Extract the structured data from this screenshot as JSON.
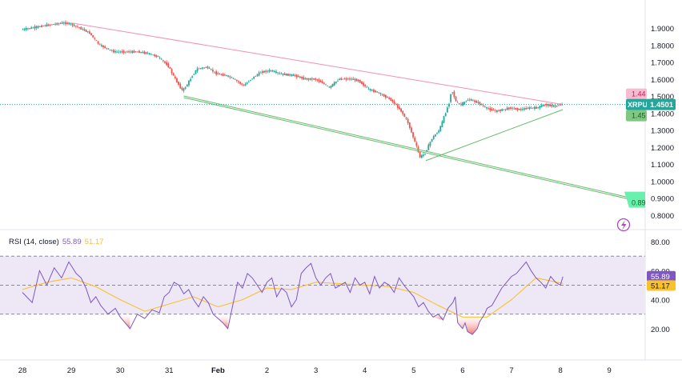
{
  "chart_data": [
    {
      "type": "candlestick",
      "symbol": "XRPUSD",
      "last_price_label": "1.4501",
      "bid_label": "1.44",
      "ask_label": "1.45",
      "target_label": "0.89",
      "x_ticks": [
        "28",
        "29",
        "30",
        "31",
        "Feb",
        "2",
        "3",
        "4",
        "5",
        "6",
        "7",
        "8",
        "9"
      ],
      "y_ticks": [
        "1.9000",
        "1.8000",
        "1.7000",
        "1.6000",
        "1.5000",
        "1.4000",
        "1.3000",
        "1.2000",
        "1.1000",
        "1.0000",
        "0.9000",
        "0.8000"
      ],
      "ylim": [
        0.78,
        1.98
      ],
      "price_path": [
        [
          0.0,
          1.89
        ],
        [
          0.5,
          1.915
        ],
        [
          0.85,
          1.93
        ],
        [
          1.0,
          1.925
        ],
        [
          1.2,
          1.9
        ],
        [
          1.4,
          1.87
        ],
        [
          1.6,
          1.8
        ],
        [
          1.75,
          1.78
        ],
        [
          1.9,
          1.76
        ],
        [
          2.1,
          1.76
        ],
        [
          2.4,
          1.76
        ],
        [
          2.6,
          1.75
        ],
        [
          2.8,
          1.73
        ],
        [
          3.0,
          1.68
        ],
        [
          3.15,
          1.6
        ],
        [
          3.3,
          1.53
        ],
        [
          3.4,
          1.57
        ],
        [
          3.5,
          1.62
        ],
        [
          3.6,
          1.66
        ],
        [
          3.8,
          1.67
        ],
        [
          4.0,
          1.63
        ],
        [
          4.2,
          1.62
        ],
        [
          4.35,
          1.6
        ],
        [
          4.55,
          1.56
        ],
        [
          4.7,
          1.6
        ],
        [
          4.9,
          1.64
        ],
        [
          5.1,
          1.65
        ],
        [
          5.3,
          1.63
        ],
        [
          5.6,
          1.62
        ],
        [
          5.8,
          1.6
        ],
        [
          6.0,
          1.6
        ],
        [
          6.15,
          1.58
        ],
        [
          6.3,
          1.55
        ],
        [
          6.5,
          1.6
        ],
        [
          6.75,
          1.6
        ],
        [
          6.9,
          1.59
        ],
        [
          7.1,
          1.54
        ],
        [
          7.3,
          1.52
        ],
        [
          7.55,
          1.48
        ],
        [
          7.75,
          1.42
        ],
        [
          7.9,
          1.35
        ],
        [
          8.0,
          1.27
        ],
        [
          8.1,
          1.19
        ],
        [
          8.15,
          1.14
        ],
        [
          8.25,
          1.16
        ],
        [
          8.4,
          1.25
        ],
        [
          8.55,
          1.3
        ],
        [
          8.65,
          1.38
        ],
        [
          8.75,
          1.46
        ],
        [
          8.8,
          1.54
        ],
        [
          8.9,
          1.46
        ],
        [
          9.0,
          1.45
        ],
        [
          9.15,
          1.48
        ],
        [
          9.35,
          1.46
        ],
        [
          9.5,
          1.43
        ],
        [
          9.7,
          1.41
        ],
        [
          9.85,
          1.42
        ],
        [
          10.0,
          1.43
        ],
        [
          10.2,
          1.42
        ],
        [
          10.4,
          1.43
        ],
        [
          10.55,
          1.43
        ],
        [
          10.7,
          1.45
        ],
        [
          10.9,
          1.44
        ],
        [
          11.05,
          1.45
        ]
      ],
      "trendlines": [
        {
          "kind": "resistance",
          "color": "#f48fb1",
          "points": [
            [
              1.0,
              1.93
            ],
            [
              11.05,
              1.45
            ]
          ]
        },
        {
          "kind": "support",
          "color": "#66bb6a",
          "points": [
            [
              3.3,
              1.5
            ],
            [
              12.6,
              0.89
            ]
          ]
        },
        {
          "kind": "rising",
          "color": "#66bb6a",
          "points": [
            [
              8.25,
              1.12
            ],
            [
              11.05,
              1.42
            ]
          ]
        }
      ],
      "horizontal_line": {
        "value": 1.4501,
        "color": "#26a69a"
      },
      "up_color": "#26a69a",
      "down_color": "#ef5350"
    },
    {
      "type": "line",
      "indicator_label": "RSI (14, close)",
      "rsi_value_label": "55.89",
      "ma_value_label": "51.17",
      "y_ticks": [
        "80.00",
        "60.00",
        "40.00",
        "20.00"
      ],
      "ylim": [
        5,
        85
      ],
      "bands": [
        70,
        50,
        30
      ],
      "rsi": [
        [
          0.0,
          45
        ],
        [
          0.2,
          38
        ],
        [
          0.35,
          60
        ],
        [
          0.5,
          50
        ],
        [
          0.65,
          62
        ],
        [
          0.8,
          55
        ],
        [
          0.95,
          66
        ],
        [
          1.1,
          58
        ],
        [
          1.2,
          55
        ],
        [
          1.3,
          48
        ],
        [
          1.4,
          38
        ],
        [
          1.5,
          42
        ],
        [
          1.6,
          36
        ],
        [
          1.75,
          30
        ],
        [
          1.9,
          34
        ],
        [
          2.0,
          28
        ],
        [
          2.1,
          24
        ],
        [
          2.2,
          20
        ],
        [
          2.35,
          30
        ],
        [
          2.5,
          27
        ],
        [
          2.65,
          33
        ],
        [
          2.8,
          31
        ],
        [
          2.9,
          42
        ],
        [
          3.0,
          45
        ],
        [
          3.1,
          52
        ],
        [
          3.2,
          50
        ],
        [
          3.3,
          44
        ],
        [
          3.4,
          47
        ],
        [
          3.5,
          40
        ],
        [
          3.6,
          35
        ],
        [
          3.7,
          42
        ],
        [
          3.8,
          38
        ],
        [
          3.9,
          30
        ],
        [
          4.0,
          27
        ],
        [
          4.1,
          24
        ],
        [
          4.2,
          20
        ],
        [
          4.3,
          36
        ],
        [
          4.4,
          52
        ],
        [
          4.5,
          48
        ],
        [
          4.6,
          58
        ],
        [
          4.7,
          55
        ],
        [
          4.8,
          50
        ],
        [
          4.9,
          45
        ],
        [
          5.0,
          52
        ],
        [
          5.1,
          55
        ],
        [
          5.2,
          42
        ],
        [
          5.3,
          48
        ],
        [
          5.4,
          45
        ],
        [
          5.5,
          35
        ],
        [
          5.6,
          40
        ],
        [
          5.7,
          58
        ],
        [
          5.8,
          62
        ],
        [
          5.9,
          65
        ],
        [
          6.0,
          55
        ],
        [
          6.1,
          50
        ],
        [
          6.2,
          55
        ],
        [
          6.3,
          58
        ],
        [
          6.4,
          48
        ],
        [
          6.5,
          50
        ],
        [
          6.6,
          52
        ],
        [
          6.7,
          45
        ],
        [
          6.8,
          55
        ],
        [
          6.9,
          50
        ],
        [
          7.0,
          52
        ],
        [
          7.1,
          44
        ],
        [
          7.2,
          56
        ],
        [
          7.3,
          48
        ],
        [
          7.4,
          52
        ],
        [
          7.5,
          50
        ],
        [
          7.6,
          45
        ],
        [
          7.7,
          55
        ],
        [
          7.8,
          50
        ],
        [
          7.9,
          46
        ],
        [
          8.0,
          42
        ],
        [
          8.1,
          35
        ],
        [
          8.2,
          38
        ],
        [
          8.3,
          32
        ],
        [
          8.4,
          28
        ],
        [
          8.5,
          30
        ],
        [
          8.6,
          26
        ],
        [
          8.7,
          34
        ],
        [
          8.8,
          38
        ],
        [
          8.85,
          42
        ],
        [
          8.9,
          24
        ],
        [
          9.0,
          20
        ],
        [
          9.05,
          24
        ],
        [
          9.1,
          18
        ],
        [
          9.2,
          16
        ],
        [
          9.3,
          20
        ],
        [
          9.35,
          25
        ],
        [
          9.45,
          30
        ],
        [
          9.5,
          34
        ],
        [
          9.6,
          36
        ],
        [
          9.7,
          42
        ],
        [
          9.8,
          48
        ],
        [
          9.9,
          52
        ],
        [
          10.0,
          56
        ],
        [
          10.1,
          58
        ],
        [
          10.2,
          62
        ],
        [
          10.3,
          66
        ],
        [
          10.4,
          60
        ],
        [
          10.5,
          55
        ],
        [
          10.6,
          52
        ],
        [
          10.7,
          48
        ],
        [
          10.8,
          56
        ],
        [
          10.9,
          52
        ],
        [
          11.0,
          50
        ],
        [
          11.05,
          55.89
        ]
      ],
      "ma": [
        [
          0.0,
          47
        ],
        [
          0.5,
          52
        ],
        [
          1.0,
          55
        ],
        [
          1.5,
          49
        ],
        [
          2.0,
          40
        ],
        [
          2.5,
          32
        ],
        [
          3.0,
          37
        ],
        [
          3.5,
          42
        ],
        [
          4.0,
          35
        ],
        [
          4.5,
          40
        ],
        [
          5.0,
          48
        ],
        [
          5.5,
          47
        ],
        [
          6.0,
          52
        ],
        [
          6.5,
          51
        ],
        [
          7.0,
          50
        ],
        [
          7.5,
          49
        ],
        [
          8.0,
          45
        ],
        [
          8.5,
          36
        ],
        [
          9.0,
          28
        ],
        [
          9.5,
          28
        ],
        [
          10.0,
          40
        ],
        [
          10.5,
          55
        ],
        [
          11.05,
          51.17
        ]
      ],
      "rsi_color": "#7e57c2",
      "ma_color": "#fbc02d",
      "band_fill": "#ede7f6"
    }
  ]
}
